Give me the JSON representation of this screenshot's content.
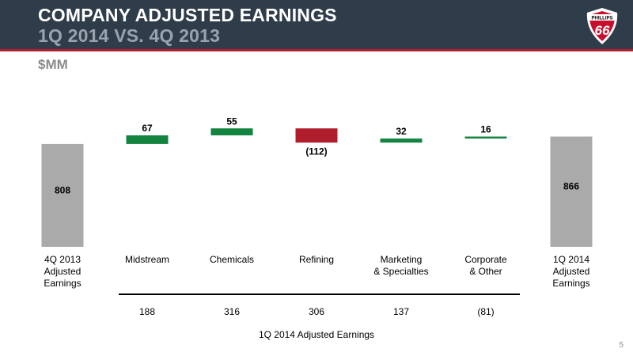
{
  "slide": {
    "title": "COMPANY ADJUSTED EARNINGS",
    "subtitle": "1Q 2014 VS. 4Q 2013",
    "units": "$MM",
    "page_number": "5",
    "logo": {
      "top_text": "PHILLIPS",
      "number": "66"
    }
  },
  "colors": {
    "header_bg": "#2f3d4b",
    "accent_red": "#b01e2e",
    "total_bar": "#aaaaaa",
    "increase_bar": "#12843f",
    "decrease_bar": "#b01e2e"
  },
  "chart_data": {
    "type": "bar",
    "subtype": "waterfall",
    "categories": [
      [
        "4Q 2013",
        "Adjusted",
        "Earnings"
      ],
      [
        "Midstream"
      ],
      [
        "Chemicals"
      ],
      [
        "Refining"
      ],
      [
        "Marketing",
        "& Specialties"
      ],
      [
        "Corporate",
        "& Other"
      ],
      [
        "1Q 2014",
        "Adjusted",
        "Earnings"
      ]
    ],
    "values": [
      808,
      67,
      55,
      -112,
      32,
      16,
      866
    ],
    "value_labels": [
      "808",
      "67",
      "55",
      "(112)",
      "32",
      "16",
      "866"
    ],
    "kinds": [
      "total",
      "delta",
      "delta",
      "delta",
      "delta",
      "delta",
      "total"
    ],
    "segment_earnings": {
      "title": "1Q 2014 Adjusted Earnings",
      "values": [
        188,
        316,
        306,
        137,
        -81
      ],
      "labels": [
        "188",
        "316",
        "306",
        "137",
        "(81)"
      ]
    }
  }
}
